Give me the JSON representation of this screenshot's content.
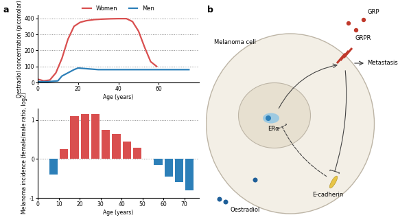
{
  "panels": [
    "a",
    "b"
  ],
  "chart_data": [
    {
      "type": "line",
      "xlabel": "Age (years)",
      "ylabel": "Oestradiol concentration (picomolar)",
      "xlim": [
        0,
        80
      ],
      "xticks": [
        0,
        20,
        40,
        60
      ],
      "ylim": [
        0,
        420
      ],
      "yticks": [
        0,
        100,
        200,
        300,
        400
      ],
      "grid": true,
      "legend": "top",
      "series": [
        {
          "name": "Women",
          "color": "#d94f4f",
          "x": [
            0,
            3,
            6,
            9,
            12,
            15,
            18,
            21,
            24,
            28,
            32,
            36,
            40,
            44,
            47,
            50,
            53,
            56,
            59
          ],
          "values": [
            20,
            10,
            15,
            60,
            150,
            270,
            350,
            375,
            385,
            392,
            395,
            397,
            398,
            398,
            380,
            320,
            220,
            130,
            100
          ]
        },
        {
          "name": "Men",
          "color": "#2c7fb8",
          "x": [
            0,
            5,
            10,
            12,
            15,
            18,
            20,
            25,
            30,
            40,
            50,
            60,
            70,
            75
          ],
          "values": [
            5,
            5,
            10,
            40,
            60,
            80,
            90,
            85,
            80,
            80,
            80,
            80,
            80,
            80
          ]
        }
      ]
    },
    {
      "type": "bar",
      "xlabel": "Age (years)",
      "ylabel": "Melanoma incidence (female/male ratio, log2)",
      "xlim": [
        0,
        77
      ],
      "xticks": [
        0,
        10,
        20,
        30,
        40,
        50,
        60,
        70
      ],
      "ylim": [
        -1,
        1.3
      ],
      "yticks": [
        -1,
        0,
        1
      ],
      "grid": true,
      "x": [
        7.5,
        12.5,
        17.5,
        22.5,
        27.5,
        32.5,
        37.5,
        42.5,
        47.5,
        57.5,
        62.5,
        67.5,
        72.5
      ],
      "values": [
        -0.4,
        0.25,
        1.1,
        1.15,
        1.15,
        0.75,
        0.65,
        0.45,
        0.3,
        -0.15,
        -0.45,
        -0.6,
        -0.8
      ],
      "colors": [
        "#2c7fb8",
        "#d94f4f",
        "#d94f4f",
        "#d94f4f",
        "#d94f4f",
        "#d94f4f",
        "#d94f4f",
        "#d94f4f",
        "#d94f4f",
        "#2c7fb8",
        "#2c7fb8",
        "#2c7fb8",
        "#2c7fb8"
      ]
    }
  ],
  "diagram": {
    "cell": "Melanoma cell",
    "ligand": "GRP",
    "receptor": "GRPR",
    "outcome": "Metastasis",
    "nuclear_receptor": "ERα",
    "adhesion": "E-cadherin",
    "hormone": "Oestradiol"
  }
}
